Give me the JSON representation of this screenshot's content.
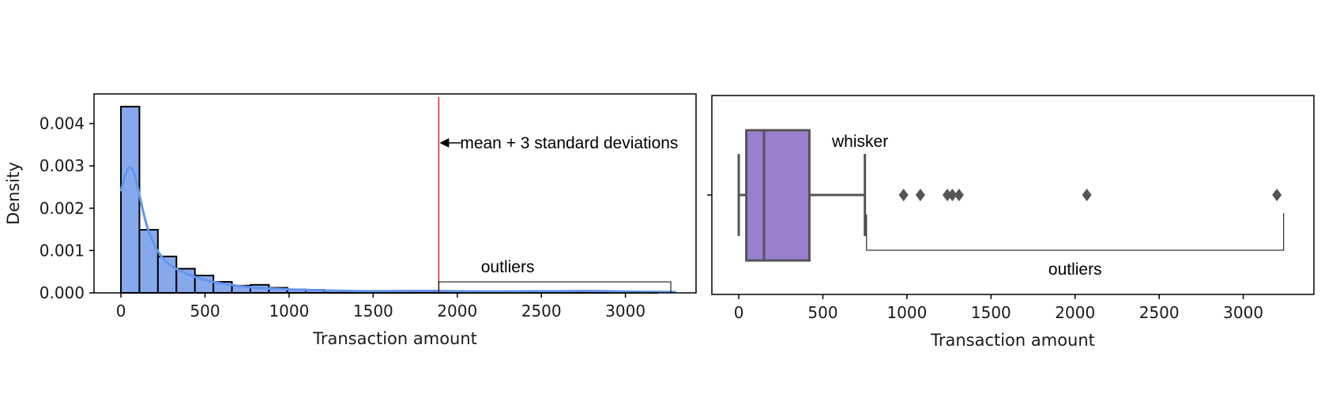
{
  "chart_data": [
    {
      "type": "histogram",
      "xlabel": "Transaction amount",
      "ylabel": "Density",
      "xlim": [
        -160,
        3420
      ],
      "ylim": [
        0,
        0.0047
      ],
      "xticks": [
        0,
        500,
        1000,
        1500,
        2000,
        2500,
        3000
      ],
      "yticks": [
        0.0,
        0.001,
        0.002,
        0.003,
        0.004
      ],
      "ytick_labels": [
        "0.000",
        "0.001",
        "0.002",
        "0.003",
        "0.004"
      ],
      "bin_width": 110,
      "bins_start": 0,
      "bar_heights": [
        0.0044,
        0.00149,
        0.00086,
        0.00057,
        0.00041,
        0.00026,
        0.00017,
        0.00019,
        0.00012,
        8e-05,
        7e-05,
        5e-05,
        4e-05,
        4e-05,
        4e-05,
        3e-05,
        5e-05,
        3e-05,
        2e-05,
        2e-05,
        3e-05,
        2e-05,
        2e-05,
        2e-05,
        2e-05,
        3e-05,
        2e-05,
        2e-05,
        1e-05
      ],
      "kde": {
        "x": [
          0,
          25,
          50,
          75,
          100,
          150,
          200,
          250,
          300,
          400,
          500,
          600,
          700,
          800,
          900,
          1000,
          1200,
          1400,
          1600,
          1800,
          2000,
          2200,
          2400,
          2600,
          2800,
          3000,
          3300
        ],
        "y": [
          0.0024,
          0.0028,
          0.003,
          0.0029,
          0.0025,
          0.0016,
          0.0011,
          0.0008,
          0.00062,
          0.00043,
          0.0003,
          0.00022,
          0.00016,
          0.00012,
          0.0001,
          8e-05,
          6e-05,
          4e-05,
          4e-05,
          5e-05,
          4e-05,
          3e-05,
          4e-05,
          4e-05,
          5e-05,
          3e-05,
          2e-05
        ]
      },
      "threshold": {
        "x": 1890,
        "label": "mean + 3 standard deviations"
      },
      "outliers_region": {
        "x_start": 1890,
        "x_end": 3270,
        "y_top": 0.00026,
        "label": "outliers"
      },
      "colors": {
        "bar_fill": "#86a9ee",
        "bar_edge": "#000000",
        "kde": "#6495ed",
        "threshold": "#d62728"
      }
    },
    {
      "type": "boxplot",
      "xlabel": "Transaction amount",
      "xlim": [
        -160,
        3420
      ],
      "xticks": [
        0,
        500,
        1000,
        1500,
        2000,
        2500,
        3000
      ],
      "box": {
        "whisker_low": 0,
        "q1": 45,
        "median": 150,
        "q3": 420,
        "whisker_high": 750
      },
      "fliers": [
        980,
        1080,
        1240,
        1270,
        1310,
        2070,
        3200
      ],
      "whisker_label": "whisker",
      "outliers_label": "outliers",
      "outliers_bracket": {
        "x_start": 760,
        "x_end": 3240
      },
      "colors": {
        "box_fill": "#9b7fcf",
        "line": "#555555"
      }
    }
  ]
}
